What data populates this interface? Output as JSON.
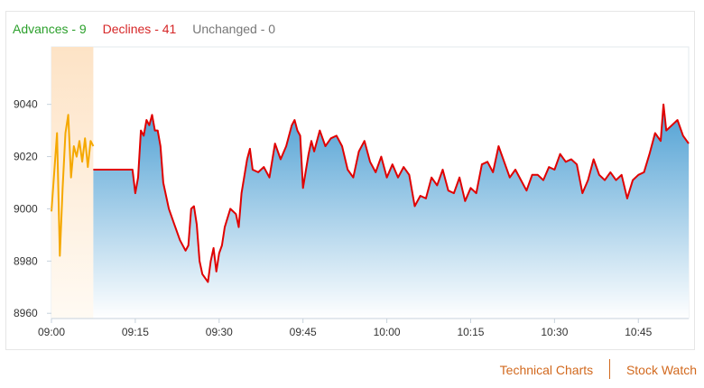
{
  "breadth": {
    "advances": "Advances - 9",
    "declines": "Declines - 41",
    "unchanged": "Unchanged - 0"
  },
  "colors": {
    "advances": "#2ca02c",
    "declines": "#d62728",
    "unchanged": "#777777",
    "main_line": "#e00000",
    "preopen_line": "#f5a800",
    "area_top": "#4d9fd3",
    "area_bottom": "#ffffff",
    "preopen_fill": "#fde3c6"
  },
  "links": {
    "technical_charts": "Technical Charts",
    "stock_watch": "Stock Watch"
  },
  "chart_data": {
    "type": "area",
    "title": "",
    "xlabel": "",
    "ylabel": "",
    "ylim": [
      8958,
      9062
    ],
    "yticks": [
      8960,
      8980,
      9000,
      9020,
      9040
    ],
    "xlim": [
      "09:00",
      "10:54"
    ],
    "xticks": [
      "09:00",
      "09:15",
      "09:30",
      "09:45",
      "10:00",
      "10:15",
      "10:30",
      "10:45"
    ],
    "grid": false,
    "legend": "none",
    "series": [
      {
        "role": "pre-open",
        "x": [
          "09:00",
          "09:00.5",
          "09:01",
          "09:01.5",
          "09:02",
          "09:02.5",
          "09:03",
          "09:03.5",
          "09:04",
          "09:04.5",
          "09:05",
          "09:05.5",
          "09:06",
          "09:06.5",
          "09:07",
          "09:07.5"
        ],
        "values": [
          8999,
          9014,
          9029,
          8982,
          9008,
          9029,
          9036,
          9012,
          9024,
          9020,
          9026,
          9018,
          9027,
          9016,
          9026,
          9024
        ]
      },
      {
        "role": "continuous",
        "x": [
          "09:07.5",
          "09:14.5",
          "09:15",
          "09:15.5",
          "09:16",
          "09:16.5",
          "09:17",
          "09:17.5",
          "09:18",
          "09:18.5",
          "09:19",
          "09:19.5",
          "09:20",
          "09:20.5",
          "09:21",
          "09:22",
          "09:23",
          "09:24",
          "09:24.5",
          "09:25",
          "09:25.5",
          "09:26",
          "09:26.5",
          "09:27",
          "09:28",
          "09:28.5",
          "09:29",
          "09:29.5",
          "09:30",
          "09:30.5",
          "09:31",
          "09:32",
          "09:33",
          "09:33.5",
          "09:34",
          "09:35",
          "09:35.5",
          "09:36",
          "09:37",
          "09:38",
          "09:39",
          "09:40",
          "09:41",
          "09:42",
          "09:43",
          "09:43.5",
          "09:44",
          "09:44.5",
          "09:45",
          "09:46",
          "09:46.5",
          "09:47",
          "09:48",
          "09:49",
          "09:50",
          "09:51",
          "09:52",
          "09:53",
          "09:54",
          "09:55",
          "09:56",
          "09:57",
          "09:58",
          "09:59",
          "10:00",
          "10:01",
          "10:02",
          "10:03",
          "10:04",
          "10:05",
          "10:06",
          "10:07",
          "10:08",
          "10:09",
          "10:10",
          "10:11",
          "10:12",
          "10:13",
          "10:14",
          "10:15",
          "10:16",
          "10:17",
          "10:18",
          "10:19",
          "10:20",
          "10:21",
          "10:22",
          "10:23",
          "10:24",
          "10:25",
          "10:26",
          "10:27",
          "10:28",
          "10:29",
          "10:30",
          "10:31",
          "10:32",
          "10:33",
          "10:34",
          "10:35",
          "10:36",
          "10:37",
          "10:38",
          "10:39",
          "10:40",
          "10:41",
          "10:42",
          "10:43",
          "10:44",
          "10:45",
          "10:46",
          "10:47",
          "10:48",
          "10:49",
          "10:49.5",
          "10:50",
          "10:51",
          "10:52",
          "10:53",
          "10:54"
        ],
        "values": [
          9015,
          9015,
          9006,
          9012,
          9030,
          9028,
          9034,
          9032,
          9036,
          9030,
          9030,
          9024,
          9010,
          9005,
          9000,
          8994,
          8988,
          8984,
          8986,
          9000,
          9001,
          8994,
          8980,
          8975,
          8972,
          8980,
          8985,
          8976,
          8983,
          8986,
          8993,
          9000,
          8998,
          8993,
          9006,
          9019,
          9023,
          9015,
          9014,
          9016,
          9012,
          9025,
          9019,
          9024,
          9032,
          9034,
          9030,
          9028,
          9008,
          9021,
          9026,
          9022,
          9030,
          9024,
          9027,
          9028,
          9024,
          9015,
          9012,
          9022,
          9026,
          9018,
          9014,
          9020,
          9012,
          9017,
          9012,
          9016,
          9013,
          9001,
          9005,
          9004,
          9012,
          9009,
          9015,
          9007,
          9006,
          9012,
          9003,
          9008,
          9006,
          9017,
          9018,
          9014,
          9024,
          9018,
          9012,
          9015,
          9011,
          9007,
          9013,
          9013,
          9011,
          9016,
          9015,
          9021,
          9018,
          9019,
          9017,
          9006,
          9011,
          9019,
          9013,
          9011,
          9014,
          9011,
          9013,
          9004,
          9011,
          9013,
          9014,
          9021,
          9029,
          9026,
          9040,
          9030,
          9032,
          9034,
          9028,
          9025
        ]
      }
    ]
  }
}
